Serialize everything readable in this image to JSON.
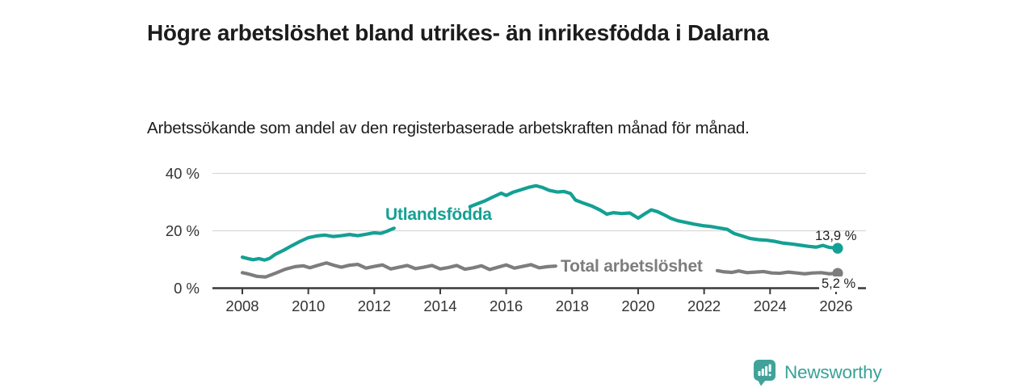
{
  "header": {
    "title": "Högre arbetslöshet bland utrikes- än inrikesfödda i Dalarna",
    "subtitle": "Arbetssökande som andel av den registerbaserade arbetskraften månad för månad."
  },
  "chart_data": {
    "type": "line",
    "unit": "%",
    "ylim": [
      0,
      40
    ],
    "xlim": [
      2008,
      2026.9
    ],
    "grid": "horizontal",
    "legend_position": "inline-labels",
    "y_ticks": [
      {
        "value": 40,
        "label": "40 %"
      },
      {
        "value": 20,
        "label": "20 %"
      },
      {
        "value": 0,
        "label": "0 %"
      }
    ],
    "x_ticks": [
      "2008",
      "2010",
      "2012",
      "2014",
      "2016",
      "2018",
      "2020",
      "2022",
      "2024",
      "2026"
    ],
    "x_tick_years": [
      2008,
      2010,
      2012,
      2014,
      2016,
      2018,
      2020,
      2022,
      2024,
      2026
    ],
    "series": [
      {
        "name": "Utlandsfödda",
        "color": "#14a094",
        "end_label": "13,9 %",
        "end_value": 13.9,
        "segments": [
          [
            [
              2008.0,
              10.8
            ],
            [
              2008.17,
              10.3
            ],
            [
              2008.33,
              9.9
            ],
            [
              2008.5,
              10.3
            ],
            [
              2008.67,
              9.8
            ],
            [
              2008.83,
              10.4
            ],
            [
              2009.0,
              11.8
            ],
            [
              2009.25,
              13.2
            ],
            [
              2009.5,
              14.8
            ],
            [
              2009.75,
              16.3
            ],
            [
              2010.0,
              17.6
            ],
            [
              2010.25,
              18.2
            ],
            [
              2010.5,
              18.5
            ],
            [
              2010.75,
              18.0
            ],
            [
              2011.0,
              18.3
            ],
            [
              2011.25,
              18.7
            ],
            [
              2011.5,
              18.3
            ],
            [
              2011.75,
              18.8
            ],
            [
              2012.0,
              19.3
            ],
            [
              2012.2,
              19.1
            ],
            [
              2012.4,
              19.9
            ],
            [
              2012.6,
              20.9
            ]
          ],
          [
            [
              2014.9,
              28.4
            ],
            [
              2015.1,
              29.3
            ],
            [
              2015.35,
              30.4
            ],
            [
              2015.6,
              31.8
            ],
            [
              2015.85,
              33.1
            ],
            [
              2016.0,
              32.3
            ],
            [
              2016.2,
              33.4
            ],
            [
              2016.45,
              34.3
            ],
            [
              2016.7,
              35.2
            ],
            [
              2016.9,
              35.7
            ],
            [
              2017.1,
              35.1
            ],
            [
              2017.3,
              34.1
            ],
            [
              2017.55,
              33.5
            ],
            [
              2017.75,
              33.7
            ],
            [
              2017.95,
              33.0
            ],
            [
              2018.1,
              30.7
            ],
            [
              2018.35,
              29.6
            ],
            [
              2018.6,
              28.6
            ],
            [
              2018.85,
              27.2
            ],
            [
              2019.05,
              25.8
            ],
            [
              2019.25,
              26.3
            ],
            [
              2019.5,
              26.0
            ],
            [
              2019.75,
              26.2
            ],
            [
              2020.0,
              24.4
            ],
            [
              2020.2,
              25.9
            ],
            [
              2020.4,
              27.3
            ],
            [
              2020.6,
              26.6
            ],
            [
              2020.8,
              25.5
            ],
            [
              2021.0,
              24.3
            ],
            [
              2021.2,
              23.5
            ],
            [
              2021.45,
              22.9
            ],
            [
              2021.7,
              22.3
            ],
            [
              2021.95,
              21.8
            ],
            [
              2022.2,
              21.5
            ],
            [
              2022.45,
              21.0
            ],
            [
              2022.7,
              20.5
            ],
            [
              2022.9,
              19.1
            ],
            [
              2023.15,
              18.2
            ],
            [
              2023.4,
              17.3
            ],
            [
              2023.65,
              16.9
            ],
            [
              2023.9,
              16.7
            ],
            [
              2024.15,
              16.3
            ],
            [
              2024.4,
              15.7
            ],
            [
              2024.65,
              15.4
            ],
            [
              2024.9,
              15.0
            ],
            [
              2025.15,
              14.6
            ],
            [
              2025.4,
              14.3
            ],
            [
              2025.6,
              14.9
            ],
            [
              2025.8,
              14.2
            ],
            [
              2026.05,
              13.9
            ]
          ]
        ]
      },
      {
        "name": "Total arbetslöshet",
        "color": "#7d7d7d",
        "end_label": "5,2 %",
        "end_value": 5.2,
        "segments": [
          [
            [
              2008.0,
              5.4
            ],
            [
              2008.2,
              4.9
            ],
            [
              2008.45,
              4.1
            ],
            [
              2008.7,
              3.9
            ],
            [
              2009.0,
              5.2
            ],
            [
              2009.3,
              6.6
            ],
            [
              2009.6,
              7.5
            ],
            [
              2009.85,
              7.8
            ],
            [
              2010.05,
              7.1
            ],
            [
              2010.3,
              8.0
            ],
            [
              2010.55,
              8.8
            ],
            [
              2010.8,
              7.9
            ],
            [
              2011.0,
              7.3
            ],
            [
              2011.25,
              8.0
            ],
            [
              2011.5,
              8.3
            ],
            [
              2011.75,
              7.0
            ],
            [
              2012.0,
              7.6
            ],
            [
              2012.25,
              8.1
            ],
            [
              2012.5,
              6.7
            ],
            [
              2012.75,
              7.3
            ],
            [
              2013.0,
              7.9
            ],
            [
              2013.25,
              6.8
            ],
            [
              2013.5,
              7.3
            ],
            [
              2013.75,
              7.9
            ],
            [
              2014.0,
              6.7
            ],
            [
              2014.25,
              7.2
            ],
            [
              2014.5,
              7.9
            ],
            [
              2014.75,
              6.6
            ],
            [
              2015.0,
              7.1
            ],
            [
              2015.25,
              7.8
            ],
            [
              2015.5,
              6.5
            ],
            [
              2015.75,
              7.3
            ],
            [
              2016.0,
              8.1
            ],
            [
              2016.25,
              7.0
            ],
            [
              2016.5,
              7.6
            ],
            [
              2016.75,
              8.2
            ],
            [
              2017.0,
              7.1
            ],
            [
              2017.25,
              7.5
            ],
            [
              2017.5,
              7.7
            ]
          ],
          [
            [
              2022.4,
              6.1
            ],
            [
              2022.6,
              5.7
            ],
            [
              2022.85,
              5.5
            ],
            [
              2023.05,
              6.0
            ],
            [
              2023.3,
              5.4
            ],
            [
              2023.55,
              5.6
            ],
            [
              2023.8,
              5.8
            ],
            [
              2024.05,
              5.3
            ],
            [
              2024.3,
              5.2
            ],
            [
              2024.55,
              5.6
            ],
            [
              2024.8,
              5.3
            ],
            [
              2025.05,
              5.0
            ],
            [
              2025.3,
              5.3
            ],
            [
              2025.55,
              5.4
            ],
            [
              2025.8,
              5.0
            ],
            [
              2026.05,
              5.2
            ]
          ]
        ]
      }
    ],
    "colors": {
      "grid": "#d8d8d8",
      "axis": "#3a3a3a",
      "tick_label": "#333333",
      "value_label": "#222222",
      "brand": "#38a199"
    }
  },
  "footer": {
    "brand": "Newsworthy"
  }
}
